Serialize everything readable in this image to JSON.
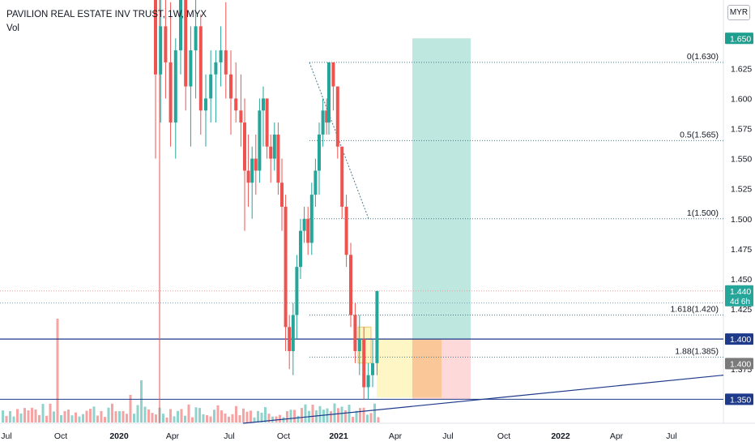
{
  "header": {
    "title": "PAVILION REAL ESTATE INV TRUST, 1W, MYX",
    "subtitle": "Vol",
    "currency": "MYR"
  },
  "colors": {
    "up": "#26a69a",
    "down": "#ef5350",
    "vol_up": "#8fd3cc",
    "vol_down": "#f5a3a3",
    "blue_line": "#1e3a8a",
    "fib_line": "#4a7a8c",
    "target_zone": "#b2e3d9",
    "stop_zone": "#fdd5d5",
    "entry_orange": "#f8b98a",
    "entry_yellow": "#fff5bf"
  },
  "chart_data": {
    "type": "candlestick",
    "title": "PAVILION REAL ESTATE INV TRUST, 1W, MYX",
    "x_axis_labels": [
      "Jul",
      "Oct",
      "2020",
      "Apr",
      "Jul",
      "Oct",
      "2021",
      "Apr",
      "Jul",
      "Oct",
      "2022",
      "Apr",
      "Jul"
    ],
    "y_axis_ticks": [
      "1.375",
      "1.425",
      "1.450",
      "1.475",
      "1.500",
      "1.525",
      "1.550",
      "1.575",
      "1.600",
      "1.625"
    ],
    "ylim": [
      1.33,
      1.665
    ],
    "price_tags": [
      {
        "label": "1.650",
        "color": "#1e9e8e"
      },
      {
        "label": "1.440",
        "sublabel": "4d 6h",
        "color": "#26a69a"
      },
      {
        "label": "1.400",
        "color": "#1e3a8a"
      },
      {
        "label": "1.400",
        "color": "#7a7a7a"
      },
      {
        "label": "1.350",
        "color": "#1e3a8a"
      }
    ],
    "fib_levels": [
      {
        "label": "0(1.630)",
        "value": 1.63
      },
      {
        "label": "0.5(1.565)",
        "value": 1.565
      },
      {
        "label": "1(1.500)",
        "value": 1.5
      },
      {
        "label": "1.618(1.420)",
        "value": 1.42
      },
      {
        "label": "1.88(1.385)",
        "value": 1.385
      }
    ],
    "horizontal_lines": [
      {
        "value": 1.4,
        "kind": "support-resistance"
      },
      {
        "value": 1.35,
        "kind": "support"
      }
    ],
    "position": {
      "entry": 1.4,
      "target": 1.65,
      "stop": 1.35
    },
    "candles": [
      [
        1.96,
        1.98,
        1.55,
        1.62
      ],
      [
        1.62,
        1.7,
        1.58,
        1.66
      ],
      [
        1.66,
        1.72,
        1.6,
        1.63
      ],
      [
        1.63,
        1.68,
        1.56,
        1.58
      ],
      [
        1.58,
        1.65,
        1.55,
        1.64
      ],
      [
        1.64,
        1.74,
        1.62,
        1.7
      ],
      [
        1.7,
        1.71,
        1.59,
        1.61
      ],
      [
        1.61,
        1.66,
        1.56,
        1.64
      ],
      [
        1.64,
        1.69,
        1.6,
        1.66
      ],
      [
        1.66,
        1.67,
        1.57,
        1.59
      ],
      [
        1.59,
        1.62,
        1.56,
        1.6
      ],
      [
        1.6,
        1.64,
        1.58,
        1.62
      ],
      [
        1.62,
        1.64,
        1.58,
        1.63
      ],
      [
        1.63,
        1.66,
        1.61,
        1.64
      ],
      [
        1.64,
        1.68,
        1.6,
        1.62
      ],
      [
        1.62,
        1.64,
        1.57,
        1.6
      ],
      [
        1.6,
        1.63,
        1.58,
        1.59
      ],
      [
        1.59,
        1.62,
        1.56,
        1.58
      ],
      [
        1.58,
        1.6,
        1.49,
        1.54
      ],
      [
        1.54,
        1.57,
        1.51,
        1.53
      ],
      [
        1.53,
        1.56,
        1.5,
        1.55
      ],
      [
        1.55,
        1.57,
        1.52,
        1.54
      ],
      [
        1.54,
        1.6,
        1.53,
        1.59
      ],
      [
        1.59,
        1.61,
        1.56,
        1.6
      ],
      [
        1.6,
        1.6,
        1.55,
        1.56
      ],
      [
        1.56,
        1.57,
        1.53,
        1.55
      ],
      [
        1.55,
        1.58,
        1.54,
        1.57
      ],
      [
        1.57,
        1.58,
        1.52,
        1.53
      ],
      [
        1.53,
        1.55,
        1.49,
        1.51
      ],
      [
        1.51,
        1.52,
        1.39,
        1.41
      ],
      [
        1.41,
        1.42,
        1.375,
        1.39
      ],
      [
        1.39,
        1.43,
        1.37,
        1.42
      ],
      [
        1.42,
        1.47,
        1.4,
        1.46
      ],
      [
        1.46,
        1.5,
        1.45,
        1.49
      ],
      [
        1.49,
        1.51,
        1.48,
        1.5
      ],
      [
        1.5,
        1.51,
        1.47,
        1.48
      ],
      [
        1.48,
        1.53,
        1.47,
        1.52
      ],
      [
        1.52,
        1.55,
        1.51,
        1.54
      ],
      [
        1.54,
        1.58,
        1.52,
        1.57
      ],
      [
        1.57,
        1.6,
        1.56,
        1.59
      ],
      [
        1.59,
        1.6,
        1.57,
        1.58
      ],
      [
        1.58,
        1.63,
        1.57,
        1.63
      ],
      [
        1.63,
        1.63,
        1.59,
        1.61
      ],
      [
        1.61,
        1.61,
        1.55,
        1.56
      ],
      [
        1.56,
        1.56,
        1.5,
        1.51
      ],
      [
        1.51,
        1.52,
        1.46,
        1.47
      ],
      [
        1.47,
        1.48,
        1.41,
        1.42
      ],
      [
        1.42,
        1.43,
        1.38,
        1.39
      ],
      [
        1.39,
        1.42,
        1.37,
        1.4
      ],
      [
        1.4,
        1.41,
        1.35,
        1.36
      ],
      [
        1.36,
        1.38,
        1.35,
        1.37
      ],
      [
        1.37,
        1.4,
        1.36,
        1.38
      ],
      [
        1.38,
        1.44,
        1.37,
        1.44
      ]
    ]
  }
}
